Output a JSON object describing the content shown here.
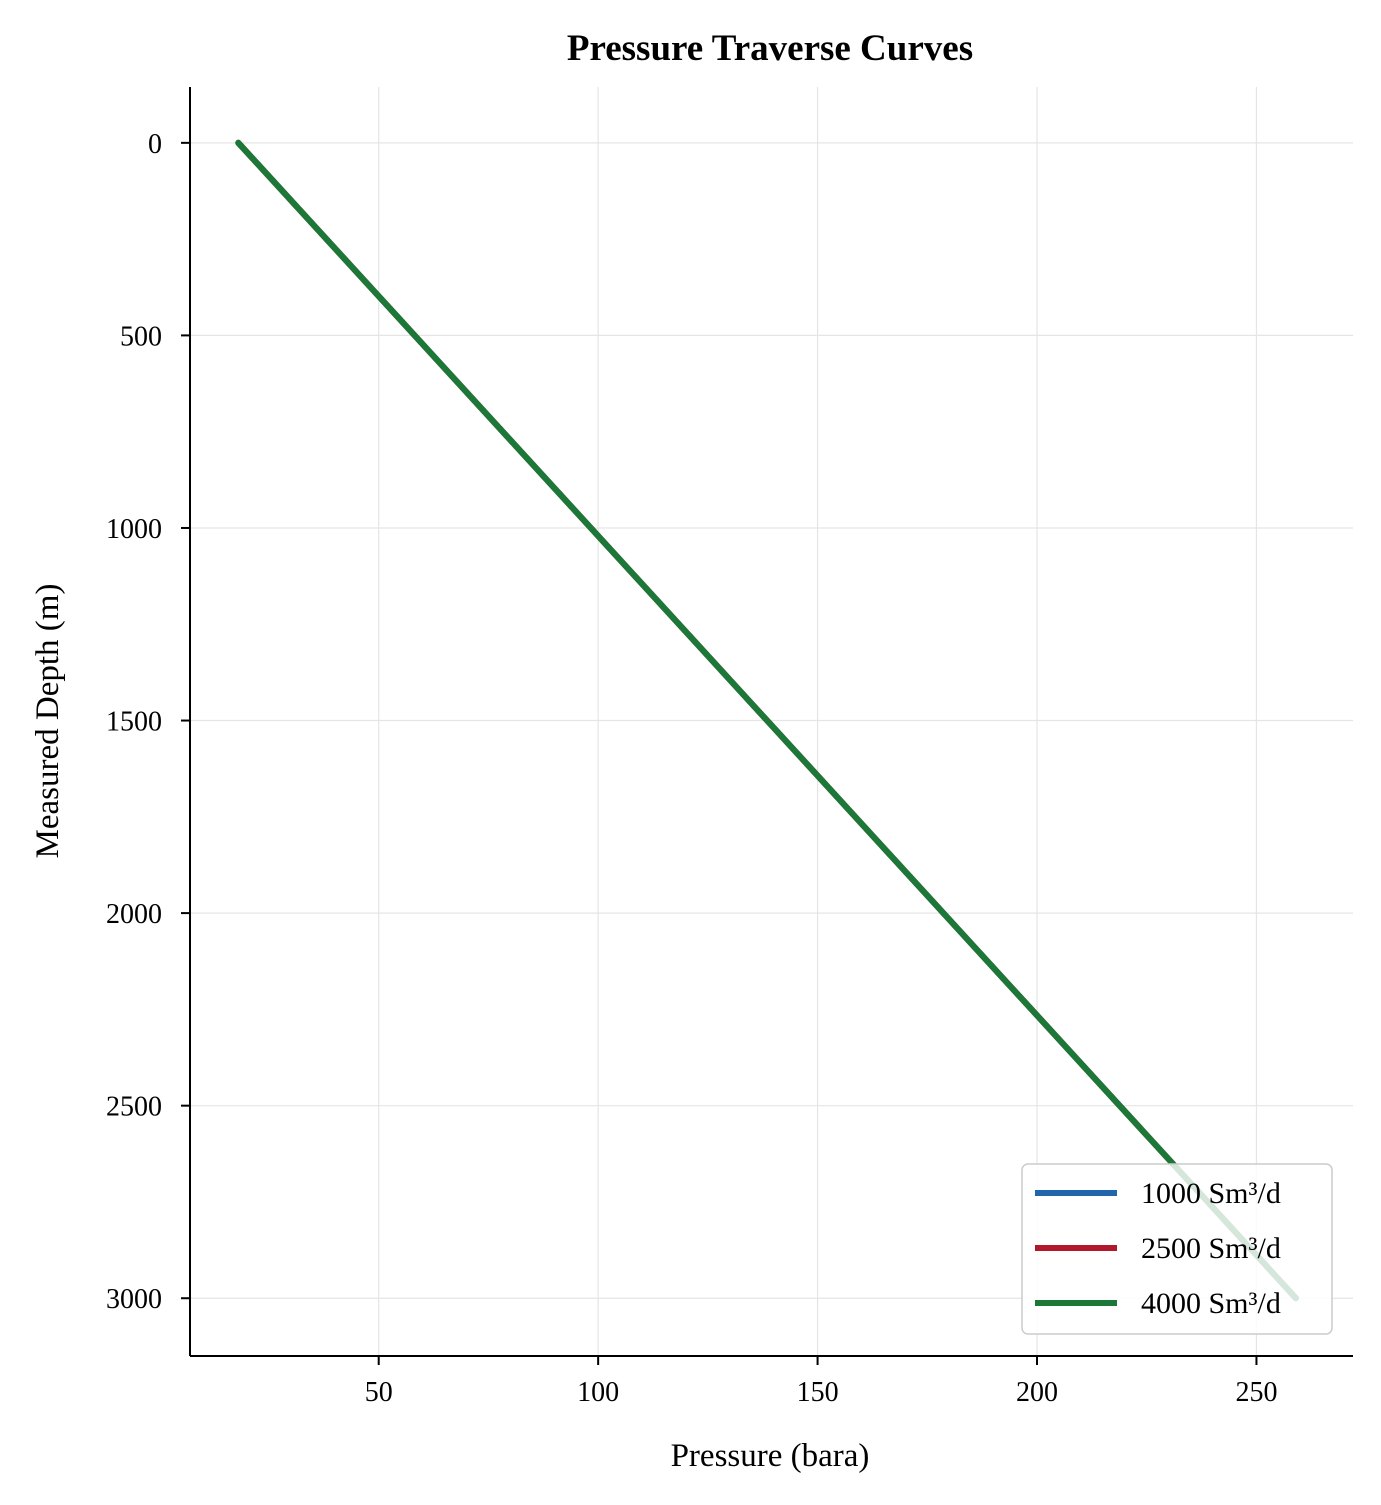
{
  "chart_data": {
    "type": "line",
    "title": "Pressure Traverse Curves",
    "xlabel": "Pressure (bara)",
    "ylabel": "Measured Depth (m)",
    "xlim": [
      7,
      272
    ],
    "ylim": [
      3150,
      -145
    ],
    "y_inverted": true,
    "grid": true,
    "legend_position": "lower-right",
    "x_ticks": [
      50,
      100,
      150,
      200,
      250
    ],
    "y_ticks": [
      0,
      500,
      1000,
      1500,
      2000,
      2500,
      3000
    ],
    "series": [
      {
        "name": "1000 Sm³/d",
        "color": "#2166ac",
        "x": [
          18,
          259
        ],
        "y": [
          0,
          3000
        ]
      },
      {
        "name": "2500 Sm³/d",
        "color": "#b2182b",
        "x": [
          18,
          259
        ],
        "y": [
          0,
          3000
        ]
      },
      {
        "name": "4000 Sm³/d",
        "color": "#1b7837",
        "x": [
          18,
          259
        ],
        "y": [
          0,
          3000
        ]
      }
    ]
  }
}
